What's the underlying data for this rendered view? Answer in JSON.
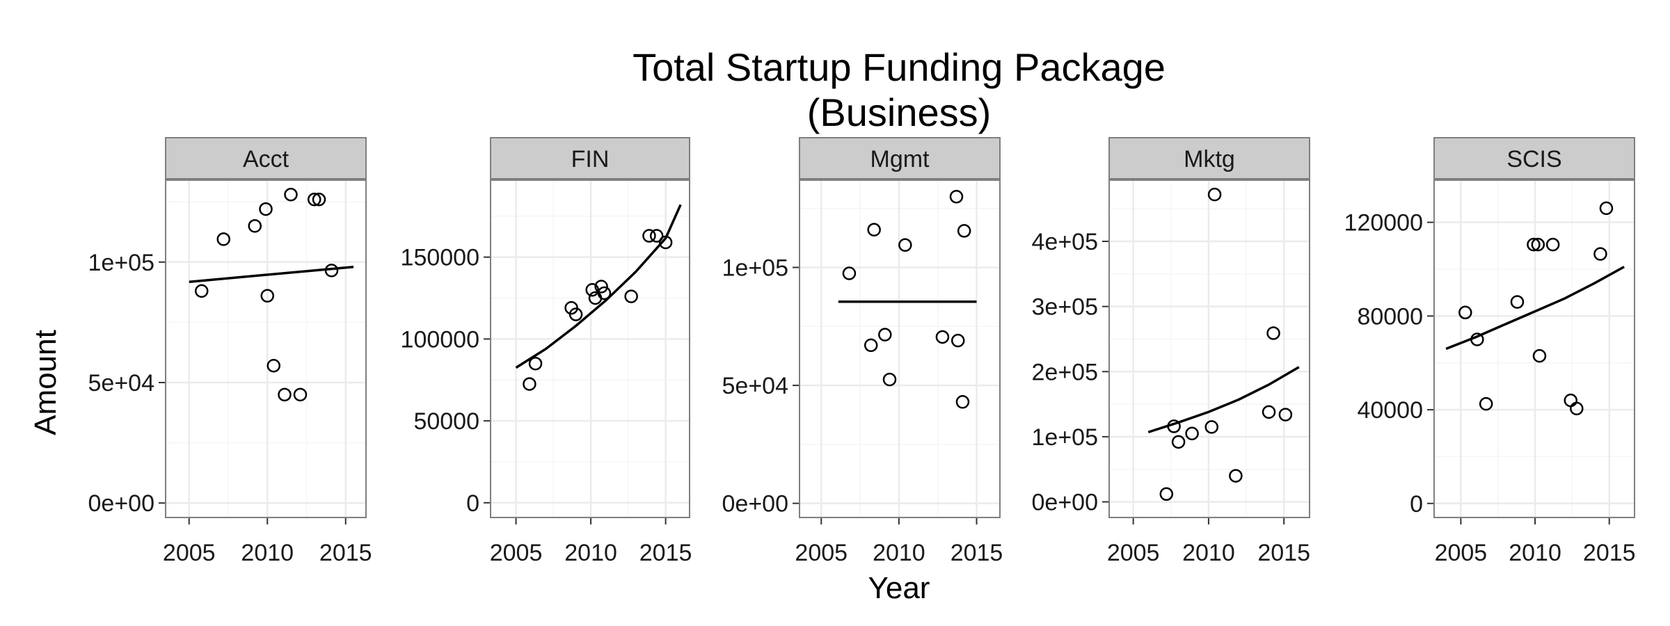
{
  "chart_data": {
    "type": "scatter",
    "title": "Total Startup Funding Package",
    "subtitle": "(Business)",
    "xlabel": "Year",
    "ylabel": "Amount",
    "grid": true,
    "trend_line": true,
    "colors": {
      "panel_bg": "#ffffff",
      "strip_bg": "#cccccc",
      "grid_major": "#ebebeb",
      "grid_minor": "#f5f5f5",
      "border": "#7f7f7f",
      "points": "#000000",
      "line": "#000000"
    },
    "x_ticks": [
      "2005",
      "2010",
      "2015"
    ],
    "facets": [
      {
        "label": "Acct",
        "xlim": [
          2003.5,
          2016.3
        ],
        "ylim": [
          -6000,
          134000
        ],
        "y_ticks": [
          {
            "value": 0,
            "label": "0e+00"
          },
          {
            "value": 50000,
            "label": "5e+04"
          },
          {
            "value": 100000,
            "label": "1e+05"
          }
        ],
        "points": [
          [
            2005.8,
            88000
          ],
          [
            2007.2,
            109500
          ],
          [
            2009.2,
            115000
          ],
          [
            2009.9,
            122000
          ],
          [
            2010.0,
            86000
          ],
          [
            2010.4,
            57000
          ],
          [
            2011.1,
            45000
          ],
          [
            2011.5,
            128000
          ],
          [
            2012.1,
            45000
          ],
          [
            2013.0,
            126000
          ],
          [
            2013.3,
            126000
          ],
          [
            2014.1,
            96500
          ]
        ],
        "fit": [
          [
            2005.0,
            91800
          ],
          [
            2015.5,
            98000
          ]
        ]
      },
      {
        "label": "FIN",
        "xlim": [
          2003.3,
          2016.6
        ],
        "ylim": [
          -9000,
          197000
        ],
        "y_ticks": [
          {
            "value": 0,
            "label": "0"
          },
          {
            "value": 50000,
            "label": "50000"
          },
          {
            "value": 100000,
            "label": "100000"
          },
          {
            "value": 150000,
            "label": "150000"
          }
        ],
        "points": [
          [
            2005.9,
            72500
          ],
          [
            2006.3,
            85000
          ],
          [
            2008.7,
            119000
          ],
          [
            2009.0,
            115000
          ],
          [
            2010.1,
            130000
          ],
          [
            2010.3,
            125000
          ],
          [
            2010.7,
            132000
          ],
          [
            2010.9,
            128000
          ],
          [
            2012.7,
            126000
          ],
          [
            2013.9,
            163000
          ],
          [
            2014.4,
            163000
          ],
          [
            2015.0,
            159000
          ]
        ],
        "fit": [
          [
            2005.0,
            82500
          ],
          [
            2007.0,
            94000
          ],
          [
            2009.0,
            108000
          ],
          [
            2011.0,
            123500
          ],
          [
            2013.0,
            141000
          ],
          [
            2015.0,
            161500
          ],
          [
            2016.0,
            182000
          ]
        ]
      },
      {
        "label": "Mgmt",
        "xlim": [
          2003.6,
          2016.5
        ],
        "ylim": [
          -6000,
          137000
        ],
        "y_ticks": [
          {
            "value": 0,
            "label": "0e+00"
          },
          {
            "value": 50000,
            "label": "5e+04"
          },
          {
            "value": 100000,
            "label": "1e+05"
          }
        ],
        "points": [
          [
            2006.8,
            97500
          ],
          [
            2008.2,
            67000
          ],
          [
            2008.4,
            116000
          ],
          [
            2009.1,
            71500
          ],
          [
            2009.4,
            52500
          ],
          [
            2010.4,
            109500
          ],
          [
            2012.8,
            70500
          ],
          [
            2013.7,
            130000
          ],
          [
            2013.8,
            69000
          ],
          [
            2014.1,
            43000
          ],
          [
            2014.2,
            115500
          ]
        ],
        "fit": [
          [
            2006.1,
            85500
          ],
          [
            2015.0,
            85500
          ]
        ]
      },
      {
        "label": "Mktg",
        "xlim": [
          2003.4,
          2016.7
        ],
        "ylim": [
          -24000,
          494000
        ],
        "y_ticks": [
          {
            "value": 0,
            "label": "0e+00"
          },
          {
            "value": 100000,
            "label": "1e+05"
          },
          {
            "value": 200000,
            "label": "2e+05"
          },
          {
            "value": 300000,
            "label": "3e+05"
          },
          {
            "value": 400000,
            "label": "4e+05"
          }
        ],
        "points": [
          [
            2007.2,
            12000
          ],
          [
            2007.7,
            116000
          ],
          [
            2008.0,
            92000
          ],
          [
            2008.9,
            105000
          ],
          [
            2010.2,
            115000
          ],
          [
            2010.4,
            472000
          ],
          [
            2011.8,
            40000
          ],
          [
            2014.0,
            138000
          ],
          [
            2014.3,
            259000
          ],
          [
            2015.1,
            134000
          ]
        ],
        "fit": [
          [
            2006.0,
            107000
          ],
          [
            2008.0,
            122000
          ],
          [
            2010.0,
            138000
          ],
          [
            2012.0,
            157000
          ],
          [
            2014.0,
            180000
          ],
          [
            2016.0,
            207000
          ]
        ]
      },
      {
        "label": "SCIS",
        "xlim": [
          2003.2,
          2016.7
        ],
        "ylim": [
          -6000,
          138000
        ],
        "y_ticks": [
          {
            "value": 0,
            "label": "0"
          },
          {
            "value": 40000,
            "label": "40000"
          },
          {
            "value": 80000,
            "label": "80000"
          },
          {
            "value": 120000,
            "label": "120000"
          }
        ],
        "points": [
          [
            2005.3,
            81500
          ],
          [
            2006.1,
            70000
          ],
          [
            2006.7,
            42500
          ],
          [
            2008.8,
            86000
          ],
          [
            2009.9,
            110500
          ],
          [
            2010.2,
            110500
          ],
          [
            2010.3,
            63000
          ],
          [
            2011.2,
            110500
          ],
          [
            2012.4,
            44000
          ],
          [
            2012.8,
            40500
          ],
          [
            2014.4,
            106500
          ],
          [
            2014.8,
            126000
          ]
        ],
        "fit": [
          [
            2004.0,
            66000
          ],
          [
            2006.0,
            71000
          ],
          [
            2008.0,
            76500
          ],
          [
            2010.0,
            82000
          ],
          [
            2012.0,
            87500
          ],
          [
            2014.0,
            94000
          ],
          [
            2016.0,
            101000
          ]
        ]
      }
    ]
  }
}
